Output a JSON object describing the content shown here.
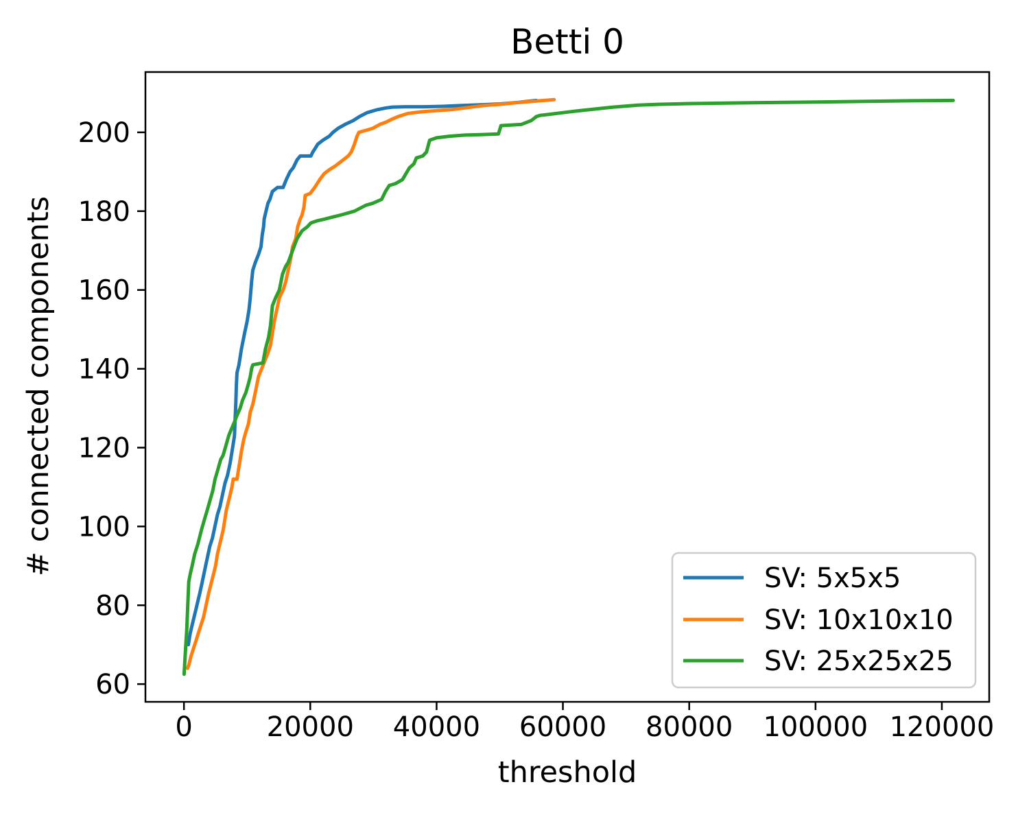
{
  "figure": {
    "title": "Betti 0",
    "xlabel": "threshold",
    "ylabel": "# connected components"
  },
  "chart_data": {
    "type": "line",
    "title": "Betti 0",
    "xlabel": "threshold",
    "ylabel": "# connected components",
    "xlim": [
      -6100,
      127500
    ],
    "ylim": [
      55.5,
      215.3
    ],
    "xticks": [
      0,
      20000,
      40000,
      60000,
      80000,
      100000,
      120000
    ],
    "yticks": [
      60,
      80,
      100,
      120,
      140,
      160,
      180,
      200
    ],
    "grid": false,
    "legend_position": "lower right",
    "axes_colors": {
      "spine": "#000000",
      "background": "#ffffff",
      "legend_edge": "#cccccc"
    },
    "series": [
      {
        "name": "SV: 5x5x5",
        "color": "#1f77b4",
        "points": [
          [
            700,
            70
          ],
          [
            800,
            71
          ],
          [
            1000,
            73
          ],
          [
            1300,
            75
          ],
          [
            1600,
            77
          ],
          [
            1900,
            79
          ],
          [
            2200,
            81
          ],
          [
            2500,
            83
          ],
          [
            2900,
            86
          ],
          [
            3300,
            89
          ],
          [
            3700,
            92
          ],
          [
            4100,
            95
          ],
          [
            4500,
            97
          ],
          [
            4900,
            100
          ],
          [
            5300,
            103
          ],
          [
            5700,
            105
          ],
          [
            6100,
            108
          ],
          [
            6500,
            111
          ],
          [
            6900,
            113
          ],
          [
            7300,
            116
          ],
          [
            7700,
            120
          ],
          [
            8000,
            123
          ],
          [
            8100,
            127
          ],
          [
            8200,
            131
          ],
          [
            8300,
            136
          ],
          [
            8400,
            139
          ],
          [
            8700,
            141
          ],
          [
            9100,
            145
          ],
          [
            9600,
            149
          ],
          [
            10000,
            152
          ],
          [
            10300,
            155
          ],
          [
            10500,
            158
          ],
          [
            10700,
            162
          ],
          [
            10900,
            165
          ],
          [
            11300,
            167
          ],
          [
            11800,
            169
          ],
          [
            12200,
            171
          ],
          [
            12400,
            174
          ],
          [
            12600,
            176
          ],
          [
            12700,
            178
          ],
          [
            13000,
            180
          ],
          [
            13300,
            182
          ],
          [
            13600,
            183
          ],
          [
            14000,
            185
          ],
          [
            14800,
            186
          ],
          [
            15700,
            186
          ],
          [
            16200,
            188
          ],
          [
            16800,
            190
          ],
          [
            17300,
            191
          ],
          [
            17900,
            193
          ],
          [
            18400,
            194
          ],
          [
            20100,
            194
          ],
          [
            20400,
            195
          ],
          [
            20800,
            196
          ],
          [
            21200,
            197
          ],
          [
            22000,
            198
          ],
          [
            23000,
            199
          ],
          [
            23600,
            200
          ],
          [
            24400,
            201
          ],
          [
            25500,
            202
          ],
          [
            26800,
            203
          ],
          [
            27800,
            204
          ],
          [
            29000,
            205
          ],
          [
            30500,
            205.7
          ],
          [
            32000,
            206.2
          ],
          [
            33000,
            206.4
          ],
          [
            35000,
            206.5
          ],
          [
            38000,
            206.5
          ],
          [
            41000,
            206.6
          ],
          [
            44000,
            206.8
          ],
          [
            47000,
            207
          ],
          [
            50000,
            207.2
          ],
          [
            53000,
            207.6
          ],
          [
            55800,
            208.1
          ]
        ]
      },
      {
        "name": "SV: 10x10x10",
        "color": "#ff7f0e",
        "points": [
          [
            575,
            64
          ],
          [
            800,
            65
          ],
          [
            1100,
            67
          ],
          [
            1500,
            69
          ],
          [
            1900,
            71
          ],
          [
            2300,
            73
          ],
          [
            2700,
            75
          ],
          [
            3100,
            77
          ],
          [
            3500,
            80
          ],
          [
            3900,
            83
          ],
          [
            4380,
            86
          ],
          [
            4700,
            88
          ],
          [
            5000,
            90
          ],
          [
            5300,
            93
          ],
          [
            5600,
            95
          ],
          [
            5900,
            97
          ],
          [
            6200,
            99
          ],
          [
            6400,
            101
          ],
          [
            6700,
            104
          ],
          [
            7000,
            106
          ],
          [
            7300,
            108
          ],
          [
            7600,
            110
          ],
          [
            7800,
            112
          ],
          [
            8400,
            112
          ],
          [
            8600,
            114
          ],
          [
            8900,
            117
          ],
          [
            9100,
            119
          ],
          [
            9450,
            122
          ],
          [
            9800,
            124
          ],
          [
            10200,
            126
          ],
          [
            10500,
            129
          ],
          [
            10900,
            131
          ],
          [
            11300,
            134
          ],
          [
            11800,
            138
          ],
          [
            12300,
            140
          ],
          [
            12800,
            142
          ],
          [
            13300,
            144
          ],
          [
            13700,
            146
          ],
          [
            14000,
            149
          ],
          [
            14300,
            152
          ],
          [
            14700,
            155
          ],
          [
            15100,
            158
          ],
          [
            15700,
            160
          ],
          [
            16100,
            162
          ],
          [
            16500,
            165
          ],
          [
            16900,
            168
          ],
          [
            17200,
            171
          ],
          [
            17700,
            173
          ],
          [
            18000,
            176
          ],
          [
            18400,
            178
          ],
          [
            18700,
            179
          ],
          [
            19000,
            181
          ],
          [
            19200,
            184
          ],
          [
            20000,
            184.5
          ],
          [
            20700,
            186
          ],
          [
            21500,
            188
          ],
          [
            22200,
            189.5
          ],
          [
            23000,
            190.5
          ],
          [
            24000,
            191.5
          ],
          [
            25200,
            193
          ],
          [
            26000,
            194
          ],
          [
            26500,
            195
          ],
          [
            27000,
            197
          ],
          [
            27400,
            199
          ],
          [
            27700,
            200
          ],
          [
            28800,
            200.5
          ],
          [
            29900,
            201
          ],
          [
            31000,
            202
          ],
          [
            32000,
            202.6
          ],
          [
            33000,
            203.4
          ],
          [
            33900,
            204
          ],
          [
            35500,
            204.8
          ],
          [
            37500,
            205.2
          ],
          [
            40000,
            205.5
          ],
          [
            42500,
            205.8
          ],
          [
            45000,
            206.3
          ],
          [
            47500,
            206.8
          ],
          [
            50000,
            207.1
          ],
          [
            52500,
            207.5
          ],
          [
            55500,
            207.9
          ],
          [
            58600,
            208.3
          ]
        ]
      },
      {
        "name": "SV: 25x25x25",
        "color": "#2ca02c",
        "points": [
          [
            30,
            62.5
          ],
          [
            150,
            66
          ],
          [
            300,
            70
          ],
          [
            450,
            74
          ],
          [
            600,
            80
          ],
          [
            760,
            86
          ],
          [
            1000,
            88
          ],
          [
            1300,
            90
          ],
          [
            1700,
            93
          ],
          [
            2200,
            95.5
          ],
          [
            2750,
            99
          ],
          [
            3290,
            102
          ],
          [
            3660,
            104
          ],
          [
            4200,
            107
          ],
          [
            4560,
            109
          ],
          [
            4920,
            112
          ],
          [
            5290,
            114
          ],
          [
            5830,
            117
          ],
          [
            6190,
            118
          ],
          [
            6550,
            120
          ],
          [
            7090,
            123
          ],
          [
            7460,
            124.5
          ],
          [
            8000,
            126.5
          ],
          [
            8360,
            128
          ],
          [
            8900,
            130
          ],
          [
            9270,
            132
          ],
          [
            9810,
            134
          ],
          [
            10170,
            136
          ],
          [
            10500,
            138
          ],
          [
            10700,
            140
          ],
          [
            10900,
            141
          ],
          [
            12500,
            141.5
          ],
          [
            12900,
            145
          ],
          [
            13400,
            148
          ],
          [
            13700,
            151
          ],
          [
            14000,
            156
          ],
          [
            14500,
            158
          ],
          [
            15100,
            160
          ],
          [
            15600,
            164
          ],
          [
            16100,
            166
          ],
          [
            16500,
            167
          ],
          [
            17200,
            170
          ],
          [
            17900,
            173
          ],
          [
            18700,
            175
          ],
          [
            19500,
            176
          ],
          [
            20100,
            177
          ],
          [
            21000,
            177.5
          ],
          [
            22300,
            178
          ],
          [
            23500,
            178.5
          ],
          [
            24800,
            179
          ],
          [
            27000,
            180
          ],
          [
            28800,
            181.5
          ],
          [
            29900,
            182
          ],
          [
            31300,
            183
          ],
          [
            31900,
            185
          ],
          [
            32500,
            186.5
          ],
          [
            33500,
            187
          ],
          [
            34600,
            188
          ],
          [
            35700,
            191
          ],
          [
            36400,
            192
          ],
          [
            36800,
            193.5
          ],
          [
            37800,
            194
          ],
          [
            38400,
            195
          ],
          [
            38900,
            198
          ],
          [
            40000,
            198.6
          ],
          [
            42000,
            199
          ],
          [
            44500,
            199.3
          ],
          [
            47000,
            199.4
          ],
          [
            49800,
            199.6
          ],
          [
            50200,
            201.7
          ],
          [
            53400,
            202
          ],
          [
            55000,
            203
          ],
          [
            55800,
            204
          ],
          [
            56400,
            204.3
          ],
          [
            58000,
            204.6
          ],
          [
            60000,
            205
          ],
          [
            62100,
            205.4
          ],
          [
            65000,
            205.9
          ],
          [
            68000,
            206.4
          ],
          [
            71900,
            206.9
          ],
          [
            75000,
            207.1
          ],
          [
            80000,
            207.3
          ],
          [
            85000,
            207.4
          ],
          [
            90000,
            207.5
          ],
          [
            95000,
            207.6
          ],
          [
            100000,
            207.7
          ],
          [
            105000,
            207.8
          ],
          [
            110000,
            207.9
          ],
          [
            115000,
            208
          ],
          [
            121800,
            208.1
          ]
        ]
      }
    ]
  }
}
